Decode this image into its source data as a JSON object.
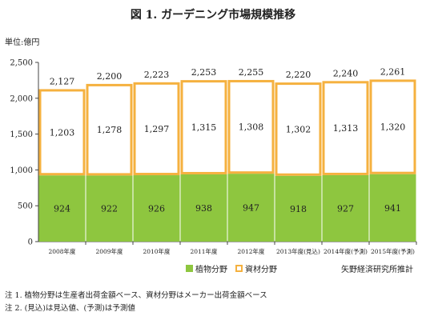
{
  "title": "図 1. ガーデニング市場規模推移",
  "unit_label": "単位:億円",
  "source": "矢野経済研究所推計",
  "notes": [
    "注 1. 植物分野は生産者出荷金額ベース、資材分野はメーカー出荷金額ベース",
    "注 2. (見込)は見込値、(予測)は予測値"
  ],
  "chart_data": {
    "type": "bar",
    "stacked": true,
    "title": "図 1. ガーデニング市場規模推移",
    "categories": [
      "2008年度",
      "2009年度",
      "2010年度",
      "2011年度",
      "2012年度",
      "2013年度(見込)",
      "2014年度(予測)",
      "2015年度(予測)"
    ],
    "series": [
      {
        "name": "植物分野",
        "color": "#8ec63f",
        "values": [
          924,
          922,
          926,
          938,
          947,
          918,
          927,
          941
        ]
      },
      {
        "name": "資材分野",
        "color": "#f5b13f",
        "values": [
          1203,
          1278,
          1297,
          1315,
          1308,
          1302,
          1313,
          1320
        ]
      }
    ],
    "totals": [
      2127,
      2200,
      2223,
      2253,
      2255,
      2220,
      2240,
      2261
    ],
    "y_ticks": [
      "0",
      "500",
      "1,000",
      "1,500",
      "2,000",
      "2,500"
    ],
    "ylim": [
      0,
      2500
    ],
    "ylabel": "単位:億円",
    "legend_position": "bottom"
  }
}
